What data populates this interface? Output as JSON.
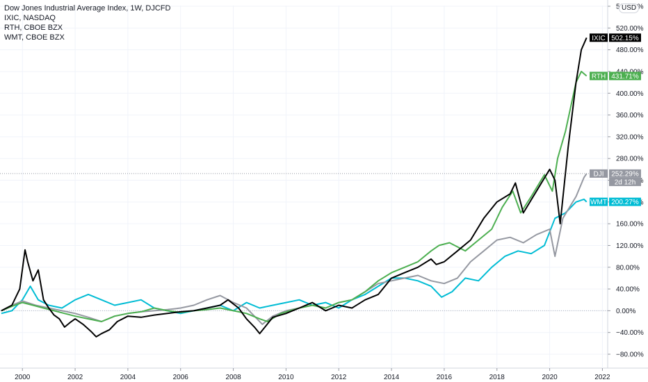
{
  "legend": {
    "title": "Dow Jones Industrial Average Index, 1W, DJCFD",
    "items": [
      "IXIC, NASDAQ",
      "RTH, CBOE BZX",
      "WMT, CBOE BZX"
    ]
  },
  "currency_badge": "USD",
  "countdown": "2d 12h",
  "chart_data": {
    "type": "line",
    "y_unit": "%",
    "ylim": [
      -100,
      560
    ],
    "y_ticks": [
      "560.00%",
      "520.00%",
      "480.00%",
      "440.00%",
      "400.00%",
      "360.00%",
      "320.00%",
      "280.00%",
      "240.00%",
      "200.00%",
      "160.00%",
      "120.00%",
      "80.00%",
      "40.00%",
      "0.00%",
      "−40.00%",
      "−80.00%"
    ],
    "y_tick_values": [
      560,
      520,
      480,
      440,
      400,
      360,
      320,
      280,
      240,
      200,
      160,
      120,
      80,
      40,
      0,
      -40,
      -80
    ],
    "x_ticks": [
      "2000",
      "2002",
      "2004",
      "2006",
      "2008",
      "2010",
      "2012",
      "2014",
      "2016",
      "2018",
      "2020",
      "2022"
    ],
    "x_tick_values": [
      2000,
      2002,
      2004,
      2006,
      2008,
      2010,
      2012,
      2014,
      2016,
      2018,
      2020,
      2022
    ],
    "xlim": [
      1999.15,
      2022.2
    ],
    "grid": true,
    "zero_line": true,
    "series": [
      {
        "name": "IXIC",
        "color": "#000000",
        "last_label": "502.15%",
        "last_value": 502.15,
        "x": [
          1999.2,
          1999.6,
          1999.9,
          2000.1,
          2000.2,
          2000.4,
          2000.6,
          2000.8,
          2001.0,
          2001.2,
          2001.4,
          2001.6,
          2001.8,
          2002.0,
          2002.3,
          2002.6,
          2002.8,
          2003.0,
          2003.3,
          2003.6,
          2004.0,
          2004.5,
          2005.0,
          2005.5,
          2006.0,
          2006.5,
          2007.0,
          2007.5,
          2007.8,
          2008.2,
          2008.5,
          2008.8,
          2009.0,
          2009.2,
          2009.5,
          2010.0,
          2010.5,
          2011.0,
          2011.5,
          2012.0,
          2012.5,
          2013.0,
          2013.5,
          2014.0,
          2014.5,
          2015.0,
          2015.5,
          2015.7,
          2016.0,
          2016.5,
          2017.0,
          2017.5,
          2018.0,
          2018.5,
          2018.7,
          2019.0,
          2019.5,
          2020.0,
          2020.2,
          2020.4,
          2020.7,
          2021.0,
          2021.2,
          2021.4
        ],
        "y": [
          0,
          10,
          40,
          112,
          90,
          55,
          75,
          20,
          5,
          -8,
          -15,
          -30,
          -22,
          -15,
          -25,
          -38,
          -48,
          -42,
          -35,
          -20,
          -10,
          -12,
          -8,
          -5,
          -2,
          0,
          5,
          10,
          20,
          5,
          -15,
          -30,
          -42,
          -30,
          -12,
          -5,
          5,
          15,
          0,
          10,
          5,
          20,
          30,
          60,
          70,
          80,
          95,
          85,
          90,
          110,
          130,
          170,
          200,
          215,
          235,
          180,
          220,
          260,
          240,
          160,
          300,
          420,
          480,
          502.15
        ]
      },
      {
        "name": "RTH",
        "color": "#4caf50",
        "last_label": "431.71%",
        "last_value": 431.71,
        "x": [
          1999.2,
          1999.6,
          2000.0,
          2000.4,
          2000.8,
          2001.2,
          2001.6,
          2002.0,
          2002.5,
          2003.0,
          2003.5,
          2004.0,
          2004.5,
          2005.0,
          2005.5,
          2006.0,
          2006.5,
          2007.0,
          2007.5,
          2008.0,
          2008.5,
          2009.0,
          2009.3,
          2009.8,
          2010.5,
          2011.0,
          2011.5,
          2012.0,
          2012.5,
          2013.0,
          2013.5,
          2014.0,
          2014.5,
          2015.0,
          2015.5,
          2015.8,
          2016.2,
          2016.8,
          2017.3,
          2017.8,
          2018.2,
          2018.6,
          2018.9,
          2019.3,
          2019.8,
          2020.1,
          2020.3,
          2020.6,
          2021.0,
          2021.2,
          2021.4
        ],
        "y": [
          0,
          8,
          15,
          10,
          5,
          0,
          -5,
          -10,
          -15,
          -20,
          -10,
          -5,
          -2,
          5,
          0,
          -3,
          0,
          2,
          5,
          0,
          -5,
          -15,
          -20,
          -5,
          5,
          10,
          5,
          15,
          20,
          35,
          55,
          70,
          80,
          90,
          110,
          120,
          125,
          110,
          130,
          150,
          190,
          220,
          180,
          210,
          250,
          220,
          280,
          330,
          420,
          440,
          431.71
        ]
      },
      {
        "name": "DJI",
        "color": "#9598a1",
        "last_label": "252.29%",
        "last_value": 252.29,
        "x": [
          1999.2,
          1999.6,
          2000.0,
          2000.5,
          2001.0,
          2001.5,
          2002.0,
          2002.5,
          2003.0,
          2003.5,
          2004.0,
          2004.5,
          2005.0,
          2005.5,
          2006.0,
          2006.5,
          2007.0,
          2007.5,
          2008.0,
          2008.5,
          2008.8,
          2009.1,
          2009.5,
          2010.0,
          2010.5,
          2011.0,
          2011.5,
          2012.0,
          2012.5,
          2013.0,
          2013.5,
          2014.0,
          2014.5,
          2015.0,
          2015.5,
          2016.0,
          2016.5,
          2017.0,
          2017.5,
          2018.0,
          2018.5,
          2019.0,
          2019.5,
          2020.0,
          2020.2,
          2020.5,
          2021.0,
          2021.3,
          2021.4
        ],
        "y": [
          0,
          10,
          18,
          10,
          5,
          0,
          -5,
          -12,
          -20,
          -10,
          -5,
          -2,
          0,
          2,
          5,
          10,
          20,
          28,
          15,
          5,
          -10,
          -25,
          -10,
          0,
          5,
          10,
          5,
          15,
          20,
          35,
          50,
          55,
          60,
          65,
          55,
          50,
          60,
          90,
          110,
          130,
          135,
          125,
          140,
          150,
          100,
          170,
          210,
          245,
          252.29
        ]
      },
      {
        "name": "WMT",
        "color": "#00bcd4",
        "last_label": "200.27%",
        "last_value": 200.27,
        "x": [
          1999.2,
          1999.6,
          2000.0,
          2000.3,
          2000.6,
          2001.0,
          2001.5,
          2002.0,
          2002.5,
          2003.0,
          2003.5,
          2004.0,
          2004.5,
          2005.0,
          2005.5,
          2006.0,
          2006.5,
          2007.0,
          2007.5,
          2008.0,
          2008.5,
          2009.0,
          2009.5,
          2010.0,
          2010.5,
          2011.0,
          2011.5,
          2012.0,
          2012.5,
          2013.0,
          2013.5,
          2014.0,
          2014.5,
          2015.0,
          2015.5,
          2015.9,
          2016.3,
          2016.8,
          2017.3,
          2017.8,
          2018.3,
          2018.8,
          2019.3,
          2019.8,
          2020.2,
          2020.6,
          2021.0,
          2021.3,
          2021.4
        ],
        "y": [
          -5,
          0,
          20,
          45,
          20,
          10,
          5,
          20,
          30,
          20,
          10,
          15,
          20,
          5,
          0,
          -5,
          0,
          5,
          10,
          0,
          15,
          5,
          10,
          15,
          20,
          10,
          15,
          5,
          20,
          30,
          45,
          60,
          60,
          55,
          45,
          25,
          35,
          60,
          55,
          80,
          100,
          110,
          105,
          120,
          170,
          180,
          200,
          205,
          200.27
        ]
      }
    ]
  }
}
